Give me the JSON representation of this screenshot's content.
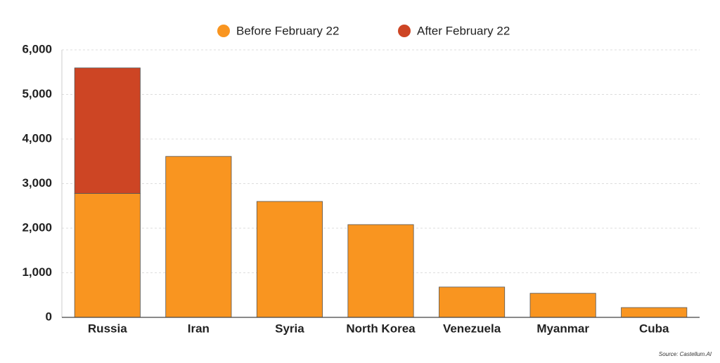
{
  "chart_data": {
    "type": "stacked-bar",
    "categories": [
      "Russia",
      "Iran",
      "Syria",
      "North Korea",
      "Venezuela",
      "Myanmar",
      "Cuba"
    ],
    "series": [
      {
        "name": "Before February 22",
        "color": "#f99520",
        "values": [
          2780,
          3610,
          2600,
          2080,
          680,
          540,
          220
        ]
      },
      {
        "name": "After February 22",
        "color": "#cd4524",
        "values": [
          2815,
          null,
          null,
          null,
          null,
          null,
          null
        ]
      }
    ],
    "ylim": [
      0,
      6000
    ],
    "yticks": [
      0,
      {
        "value": 1000,
        "label": "1,000"
      },
      {
        "value": 2000,
        "label": "2,000"
      },
      {
        "value": 3000,
        "label": "3,000"
      },
      {
        "value": 4000,
        "label": "4,000"
      },
      {
        "value": 5000,
        "label": "5,000"
      },
      {
        "value": 6000,
        "label": "6,000"
      }
    ],
    "grid": true,
    "legend": "top",
    "source": "Source: Castellum.AI"
  }
}
